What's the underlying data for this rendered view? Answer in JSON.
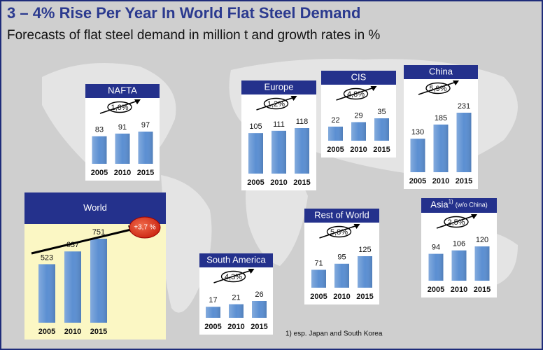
{
  "header": {
    "title": "3 – 4% Rise Per Year In World Flat Steel Demand",
    "subtitle": "Forecasts of flat steel demand in million t and growth rates in %"
  },
  "chart_data": [
    {
      "type": "bar",
      "title": "NAFTA",
      "growth": "1,6%",
      "categories": [
        "2005",
        "2010",
        "2015"
      ],
      "values": [
        83,
        91,
        97
      ],
      "color": "#5b8fd2"
    },
    {
      "type": "bar",
      "title": "Europe",
      "growth": "1,2%",
      "categories": [
        "2005",
        "2010",
        "2015"
      ],
      "values": [
        105,
        111,
        118
      ],
      "color": "#5b8fd2"
    },
    {
      "type": "bar",
      "title": "CIS",
      "growth": "4,8%",
      "categories": [
        "2005",
        "2010",
        "2015"
      ],
      "values": [
        22,
        29,
        35
      ],
      "color": "#5b8fd2"
    },
    {
      "type": "bar",
      "title": "China",
      "growth": "5,9%",
      "categories": [
        "2005",
        "2010",
        "2015"
      ],
      "values": [
        130,
        185,
        231
      ],
      "color": "#5b8fd2"
    },
    {
      "type": "bar",
      "title": "World",
      "growth": "+3,7 %",
      "categories": [
        "2005",
        "2010",
        "2015"
      ],
      "values": [
        523,
        637,
        751
      ],
      "color": "#5b8fd2"
    },
    {
      "type": "bar",
      "title": "Rest of World",
      "growth": "5,8%",
      "categories": [
        "2005",
        "2010",
        "2015"
      ],
      "values": [
        71,
        95,
        125
      ],
      "color": "#5b8fd2"
    },
    {
      "type": "bar",
      "title": "Asia",
      "title_note": "1)",
      "title_suffix": "(w/o China)",
      "growth": "2,5%",
      "categories": [
        "2005",
        "2010",
        "2015"
      ],
      "values": [
        94,
        106,
        120
      ],
      "color": "#5b8fd2"
    },
    {
      "type": "bar",
      "title": "South America",
      "growth": "4,3%",
      "categories": [
        "2005",
        "2010",
        "2015"
      ],
      "values": [
        17,
        21,
        26
      ],
      "color": "#5b8fd2"
    }
  ],
  "footnote": "1) esp. Japan and South Korea"
}
